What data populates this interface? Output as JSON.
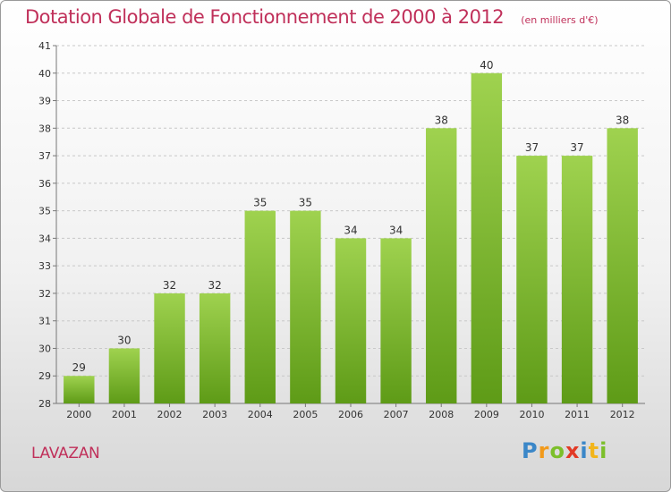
{
  "title": "Dotation Globale de Fonctionnement de 2000 à 2012",
  "subtitle": "(en milliers d'€)",
  "commune": "LAVAZAN",
  "logo": "Proxiti",
  "colors": {
    "title": "#c0305a",
    "bar_top": "#9fd24f",
    "bar_bottom": "#5e9b17",
    "grid": "#c8c8c8"
  },
  "chart_data": {
    "type": "bar",
    "title": "Dotation Globale de Fonctionnement de 2000 à 2012",
    "subtitle": "(en milliers d'€)",
    "xlabel": "",
    "ylabel": "",
    "categories": [
      "2000",
      "2001",
      "2002",
      "2003",
      "2004",
      "2005",
      "2006",
      "2007",
      "2008",
      "2009",
      "2010",
      "2011",
      "2012"
    ],
    "values": [
      29,
      30,
      32,
      32,
      35,
      35,
      34,
      34,
      38,
      40,
      37,
      37,
      38
    ],
    "ylim": [
      28,
      41
    ],
    "yticks": [
      28,
      29,
      30,
      31,
      32,
      33,
      34,
      35,
      36,
      37,
      38,
      39,
      40,
      41
    ],
    "grid": true,
    "legend": "none"
  }
}
